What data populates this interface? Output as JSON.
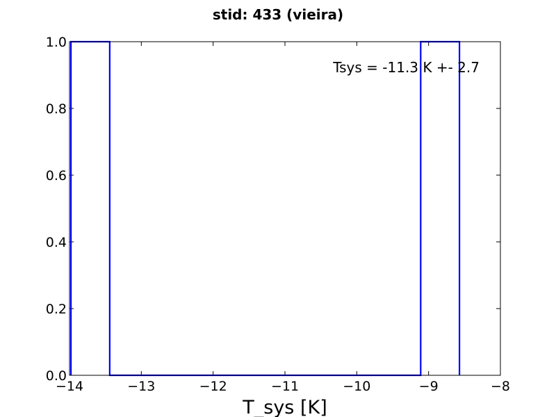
{
  "chart_data": {
    "type": "step",
    "title": "stid: 433 (vieira)",
    "xlabel": "T_sys [K]",
    "ylabel": "",
    "xlim": [
      -14,
      -8
    ],
    "ylim": [
      0.0,
      1.0
    ],
    "grid": false,
    "xticks": [
      -14,
      -13,
      -12,
      -11,
      -10,
      -9,
      -8
    ],
    "xtick_labels": [
      "−14",
      "−13",
      "−12",
      "−11",
      "−10",
      "−9",
      "−8"
    ],
    "yticks": [
      0.0,
      0.2,
      0.4,
      0.6,
      0.8,
      1.0
    ],
    "ytick_labels": [
      "0.0",
      "0.2",
      "0.4",
      "0.6",
      "0.8",
      "1.0"
    ],
    "annotation": "Tsys = -11.3 K +- 2.7",
    "series": [
      {
        "color": "#0000ff",
        "x": [
          -13.98,
          -13.98,
          -13.44,
          -13.44,
          -9.11,
          -9.11,
          -8.57,
          -8.57
        ],
        "y": [
          0,
          1,
          1,
          0,
          0,
          1,
          1,
          0
        ]
      }
    ]
  }
}
